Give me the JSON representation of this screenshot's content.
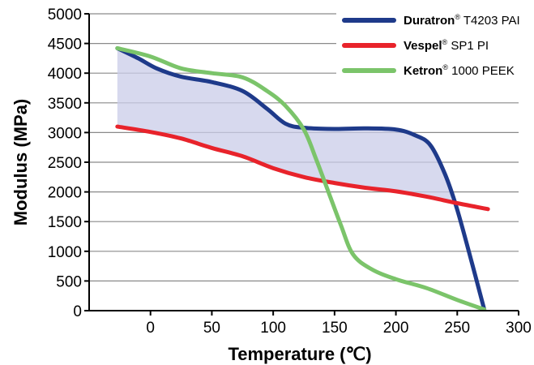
{
  "chart_data": {
    "type": "line",
    "xlabel": "Temperature (℃)",
    "ylabel": "Modulus (MPa)",
    "xlim": [
      -50,
      300
    ],
    "ylim": [
      0,
      5000
    ],
    "xticks": [
      0,
      50,
      100,
      150,
      200,
      250,
      300
    ],
    "yticks": [
      0,
      500,
      1000,
      1500,
      2000,
      2500,
      3000,
      3500,
      4000,
      4500,
      5000
    ],
    "grid": "horizontal",
    "legend_position": "top-right",
    "series": [
      {
        "name": "Duratron® T4203 PAI",
        "brand": "Duratron",
        "model": "T4203 PAI",
        "color": "#1e3a8a",
        "x": [
          -27,
          -10,
          5,
          25,
          50,
          75,
          95,
          110,
          125,
          150,
          175,
          200,
          215,
          228,
          240,
          250,
          262,
          272
        ],
        "y": [
          4420,
          4250,
          4080,
          3940,
          3850,
          3700,
          3400,
          3150,
          3080,
          3060,
          3070,
          3050,
          2960,
          2790,
          2300,
          1700,
          800,
          20
        ]
      },
      {
        "name": "Vespel® SP1 PI",
        "brand": "Vespel",
        "model": "SP1 PI",
        "color": "#e8232b",
        "x": [
          -27,
          0,
          25,
          50,
          75,
          100,
          125,
          150,
          175,
          200,
          225,
          250,
          275
        ],
        "y": [
          3100,
          3010,
          2900,
          2740,
          2600,
          2400,
          2250,
          2150,
          2070,
          2010,
          1920,
          1810,
          1710
        ]
      },
      {
        "name": "Ketron® 1000 PEEK",
        "brand": "Ketron",
        "model": "1000 PEEK",
        "color": "#7bc46a",
        "x": [
          -27,
          0,
          25,
          50,
          75,
          95,
          110,
          125,
          135,
          145,
          155,
          165,
          180,
          200,
          225,
          250,
          272
        ],
        "y": [
          4420,
          4280,
          4080,
          4000,
          3930,
          3700,
          3450,
          3050,
          2550,
          2000,
          1450,
          950,
          700,
          530,
          380,
          180,
          20
        ]
      }
    ],
    "shaded_region": {
      "color": "#c9cce8",
      "between": [
        "Duratron® T4203 PAI",
        "Vespel® SP1 PI"
      ],
      "x_range": [
        -27,
        245
      ]
    }
  }
}
